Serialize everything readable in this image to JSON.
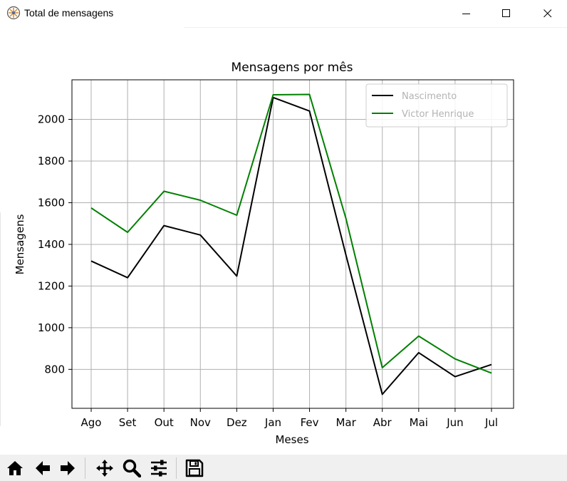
{
  "window": {
    "title": "Total de mensagens",
    "controls": [
      "minimize",
      "maximize",
      "close"
    ]
  },
  "chart_data": {
    "type": "line",
    "title": "Mensagens por mês",
    "xlabel": "Meses",
    "ylabel": "Mensagens",
    "categories": [
      "Ago",
      "Set",
      "Out",
      "Nov",
      "Dez",
      "Jan",
      "Fev",
      "Mar",
      "Abr",
      "Mai",
      "Jun",
      "Jul"
    ],
    "yticks": [
      800,
      1000,
      1200,
      1400,
      1600,
      1800,
      2000
    ],
    "ylim": [
      613,
      2190
    ],
    "grid": true,
    "legend": "top-right",
    "series": [
      {
        "name": "Nascimento",
        "color": "#000000",
        "values": [
          1320,
          1240,
          1490,
          1445,
          1248,
          2105,
          2040,
          1350,
          680,
          880,
          765,
          823
        ]
      },
      {
        "name": "Victor Henrique",
        "color": "#008000",
        "values": [
          1575,
          1458,
          1655,
          1612,
          1540,
          2118,
          2120,
          1525,
          808,
          960,
          850,
          782
        ]
      }
    ]
  },
  "toolbar": {
    "buttons": [
      "home-icon",
      "back-icon",
      "forward-icon",
      "pan-icon",
      "zoom-icon",
      "configure-subplots-icon",
      "save-icon"
    ]
  }
}
